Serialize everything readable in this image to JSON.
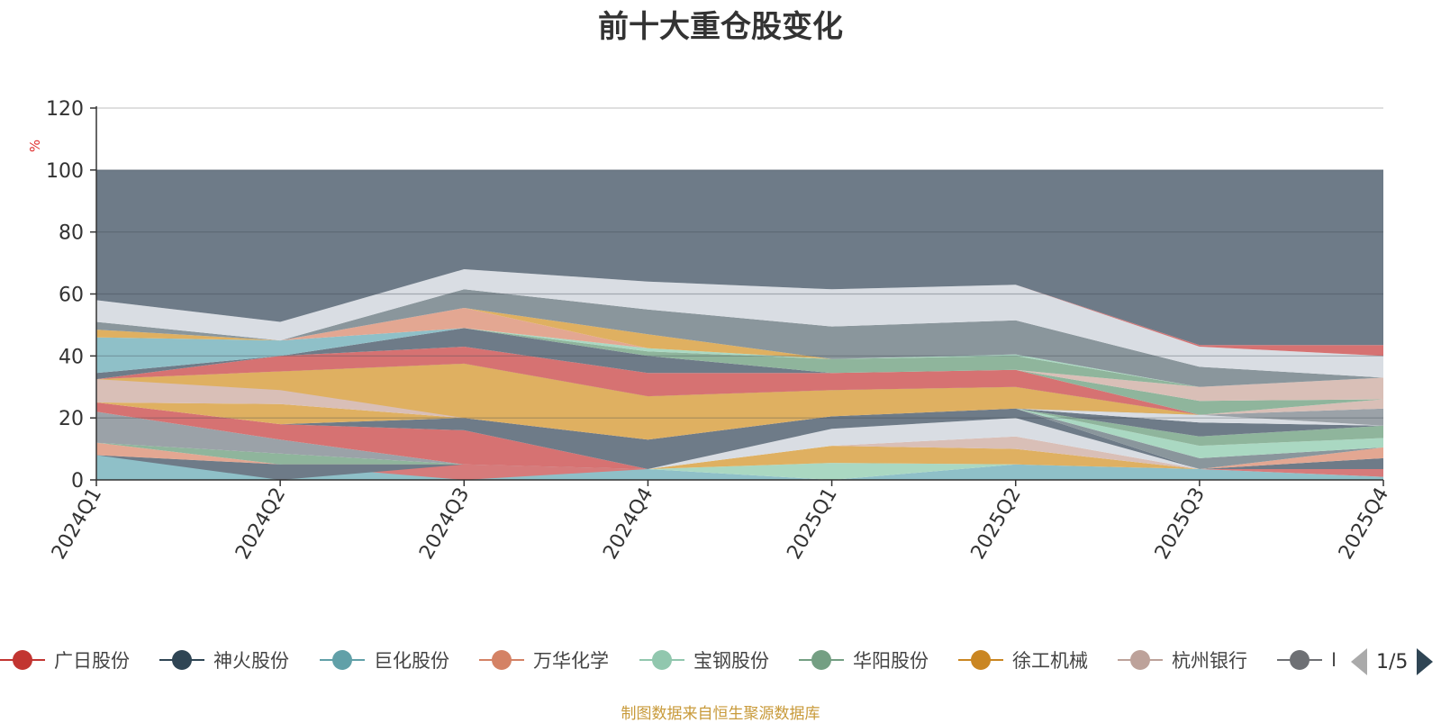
{
  "chart_data": {
    "type": "area",
    "title": "前十大重仓股变化",
    "ylabel": "%",
    "ylim": [
      0,
      120
    ],
    "yticks": [
      0,
      20,
      40,
      60,
      80,
      100,
      120
    ],
    "categories": [
      "2024Q1",
      "2024Q2",
      "2024Q3",
      "2024Q4",
      "2025Q1",
      "2025Q2",
      "2025Q3",
      "2025Q4"
    ],
    "grid": true,
    "stacked": true,
    "layers": [
      {
        "color": "#8fc0c8",
        "top": [
          8,
          5,
          5,
          3.5,
          0,
          5,
          3.5,
          1
        ]
      },
      {
        "color": "#d67b7b",
        "top": [
          8,
          5,
          0,
          3.5,
          0,
          5,
          3.5,
          3.5
        ]
      },
      {
        "color": "#6e7b88",
        "top": [
          8,
          0,
          5,
          3.5,
          0,
          5,
          3.5,
          7
        ]
      },
      {
        "color": "#e3a792",
        "top": [
          12,
          5,
          5,
          3.5,
          0,
          5,
          3.5,
          10.5
        ]
      },
      {
        "color": "#aad8c2",
        "top": [
          12,
          5,
          5,
          3.5,
          5.5,
          5,
          3.5,
          10.5
        ]
      },
      {
        "color": "#8fb59c",
        "top": [
          12,
          8.5,
          5,
          3.5,
          5.5,
          5,
          3.5,
          10.5
        ]
      },
      {
        "color": "#dfb061",
        "top": [
          12,
          8.5,
          5,
          3.5,
          11,
          10,
          3.5,
          10.5
        ]
      },
      {
        "color": "#d9bfb7",
        "top": [
          12,
          8.5,
          5,
          3.5,
          11,
          14,
          3.5,
          10.5
        ]
      },
      {
        "color": "#9ba2a8",
        "top": [
          22,
          13,
          5,
          3.5,
          11,
          14,
          3.5,
          10.5
        ]
      },
      {
        "color": "#d67272",
        "top": [
          25,
          18,
          16,
          3.5,
          11,
          14,
          3.5,
          10.5
        ]
      },
      {
        "color": "#d9dde3",
        "top": [
          25,
          18,
          16,
          3.5,
          16.5,
          20,
          3.5,
          10.5
        ]
      },
      {
        "color": "#6e7b88",
        "top": [
          25,
          18,
          20,
          13,
          20.5,
          23,
          3.5,
          10.5
        ]
      },
      {
        "color": "#8a969c",
        "top": [
          25,
          18,
          20,
          13,
          20.5,
          23,
          7,
          10.5
        ]
      },
      {
        "color": "#e3a792",
        "top": [
          25,
          18,
          20,
          13,
          20.5,
          23,
          7,
          10.5
        ]
      },
      {
        "color": "#aad8c2",
        "top": [
          25,
          18,
          20,
          13,
          20.5,
          23,
          11,
          13.5
        ]
      },
      {
        "color": "#8fb59c",
        "top": [
          25,
          18,
          20,
          13,
          20.5,
          23,
          14,
          17.5
        ]
      },
      {
        "color": "#dfb061",
        "top": [
          25,
          24.5,
          20,
          13,
          20.5,
          23,
          14,
          17.5
        ]
      },
      {
        "color": "#6e7b88",
        "top": [
          25,
          24.5,
          20,
          13,
          20.5,
          23,
          18.5,
          17.5
        ]
      },
      {
        "color": "#d9dde3",
        "top": [
          25,
          24.5,
          20,
          13,
          20.5,
          23,
          21,
          17.5
        ]
      },
      {
        "color": "#9ba2a8",
        "top": [
          25,
          24.5,
          20,
          13,
          20.5,
          23,
          21,
          23
        ]
      },
      {
        "color": "#d9bfb7",
        "top": [
          32.5,
          35,
          28,
          20,
          25,
          23,
          21,
          26
        ]
      },
      {
        "color": "#8a969c",
        "top": [
          32.5,
          35,
          37.5,
          27,
          29,
          30,
          21,
          26
        ]
      },
      {
        "color": "#dfb061",
        "top": [
          32.5,
          29,
          20,
          13,
          20.5,
          23,
          21,
          26
        ]
      },
      {
        "color": "#6e7b88",
        "top": [
          32.5,
          35,
          37.5,
          27,
          29,
          30,
          21,
          26
        ]
      },
      {
        "color": "#d67272",
        "top": [
          32.5,
          40,
          43,
          34.5,
          34.5,
          35.5,
          21,
          26
        ]
      },
      {
        "color": "#8fb59c",
        "top": [
          32.5,
          40,
          43,
          34.5,
          34.5,
          35.5,
          25.5,
          26
        ]
      },
      {
        "color": "#aad8c2",
        "top": [
          32.5,
          40,
          43,
          34.5,
          34.5,
          35.5,
          25.5,
          26
        ]
      },
      {
        "color": "#d9bfb7",
        "top": [
          32.5,
          40,
          43,
          34.5,
          34.5,
          35.5,
          30,
          33
        ]
      },
      {
        "color": "#6e7b88",
        "top": [
          34.5,
          40,
          49,
          40,
          34.5,
          35.5,
          30,
          33
        ]
      },
      {
        "color": "#8fb59c",
        "top": [
          34.5,
          40,
          49,
          41.5,
          39,
          40,
          30,
          33
        ]
      },
      {
        "color": "#aad8c2",
        "top": [
          34.5,
          40,
          49,
          42.5,
          39,
          40.5,
          30,
          33
        ]
      },
      {
        "color": "#8fc0c8",
        "top": [
          46,
          45,
          49,
          42.5,
          39,
          40.5,
          30,
          33
        ]
      },
      {
        "color": "#e3a792",
        "top": [
          46,
          45,
          55.5,
          42.5,
          39,
          40.5,
          30,
          33
        ]
      },
      {
        "color": "#dfb061",
        "top": [
          48.5,
          45,
          55.5,
          47,
          39,
          40.5,
          30,
          33
        ]
      },
      {
        "color": "#8a969c",
        "top": [
          51,
          45,
          61.5,
          55,
          49.5,
          51.5,
          36.5,
          33
        ]
      },
      {
        "color": "#d9dde3",
        "top": [
          58,
          51,
          68,
          64,
          61.5,
          63,
          43,
          40
        ]
      },
      {
        "color": "#d67272",
        "top": [
          58,
          51,
          68,
          64,
          61.5,
          63,
          43.5,
          43.5
        ]
      },
      {
        "color": "#6e7b88",
        "top": [
          100,
          100,
          100,
          100,
          100,
          100,
          100,
          100
        ]
      }
    ],
    "legend": [
      {
        "name": "广日股份",
        "color": "#c23531"
      },
      {
        "name": "神火股份",
        "color": "#2f4554"
      },
      {
        "name": "巨化股份",
        "color": "#61a0a8"
      },
      {
        "name": "万华化学",
        "color": "#d48265"
      },
      {
        "name": "宝钢股份",
        "color": "#91c7ae"
      },
      {
        "name": "华阳股份",
        "color": "#749f83"
      },
      {
        "name": "徐工机械",
        "color": "#ca8622"
      },
      {
        "name": "杭州银行",
        "color": "#bda29a"
      },
      {
        "name": "I",
        "color": "#6e7074"
      }
    ],
    "legend_page": "1/5"
  },
  "source": "制图数据来自恒生聚源数据库"
}
